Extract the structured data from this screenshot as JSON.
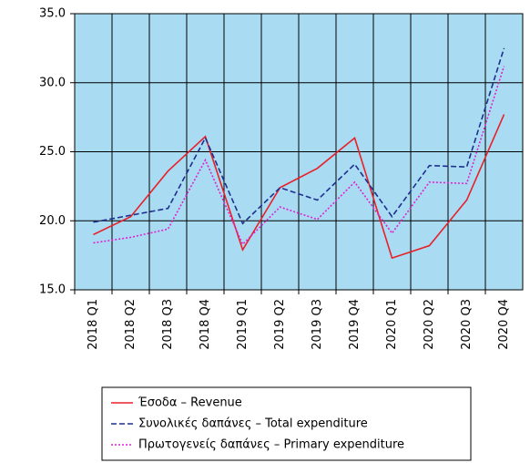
{
  "chart_data": {
    "type": "line",
    "categories": [
      "2018 Q1",
      "2018 Q2",
      "2018 Q3",
      "2018 Q4",
      "2019 Q1",
      "2019 Q2",
      "2019 Q3",
      "2019 Q4",
      "2020 Q1",
      "2020 Q2",
      "2020 Q3",
      "2020 Q4"
    ],
    "series": [
      {
        "name": "Έσοδα – Revenue",
        "color": "#e8202a",
        "values": [
          19.0,
          20.3,
          23.6,
          26.1,
          17.9,
          22.4,
          23.8,
          26.0,
          17.3,
          18.2,
          21.5,
          27.7
        ]
      },
      {
        "name": "Συνολικές δαπάνες – Total expenditure",
        "color": "#1f2f8f",
        "values": [
          19.9,
          20.4,
          20.9,
          26.0,
          19.8,
          22.4,
          21.5,
          24.1,
          20.3,
          24.0,
          23.9,
          32.5
        ]
      },
      {
        "name": "Πρωτογενείς δαπάνες – Primary expenditure",
        "color": "#e020d0",
        "values": [
          18.4,
          18.8,
          19.4,
          24.4,
          18.3,
          21.0,
          20.1,
          22.8,
          19.1,
          22.8,
          22.7,
          31.2
        ]
      }
    ],
    "ylim": [
      15,
      35
    ],
    "yticks": [
      {
        "value": 15,
        "label": "15.0"
      },
      {
        "value": 20,
        "label": "20.0"
      },
      {
        "value": 25,
        "label": "25.0"
      },
      {
        "value": 30,
        "label": "30.0"
      },
      {
        "value": 35,
        "label": "35.0"
      }
    ],
    "grid": true
  }
}
